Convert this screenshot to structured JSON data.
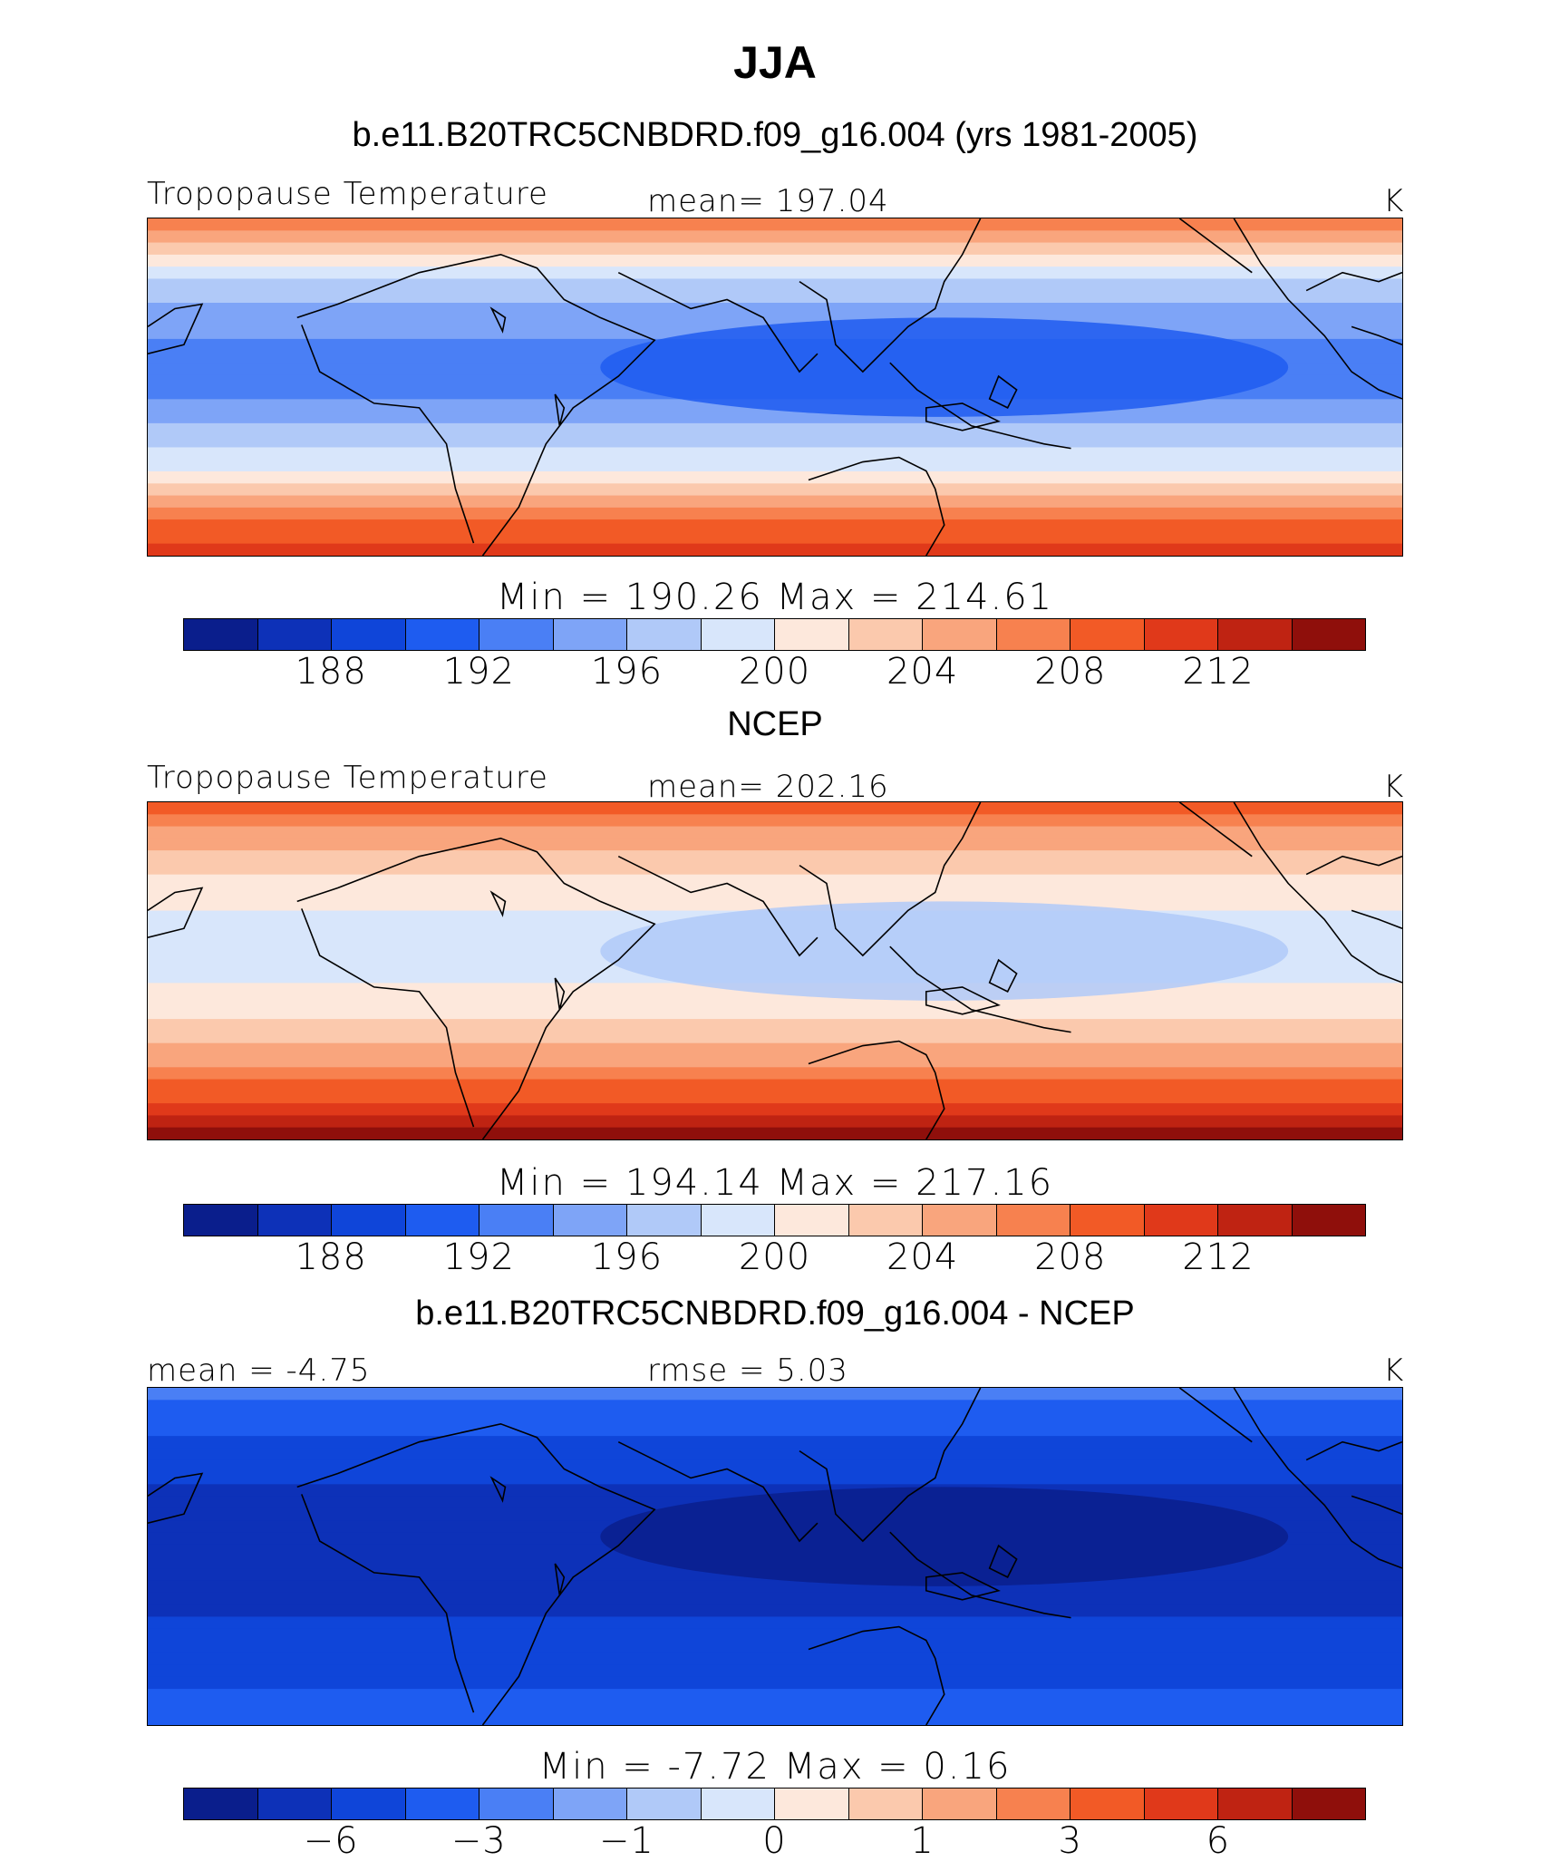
{
  "title": "JJA",
  "colors": [
    "#0a1e8c",
    "#0d31b8",
    "#0f45d9",
    "#1e5cf0",
    "#4a7ff5",
    "#7ea4f7",
    "#b0c9f8",
    "#d8e6fb",
    "#fde8dc",
    "#fbc9ad",
    "#f9a57d",
    "#f7814f",
    "#f25a26",
    "#e0391a",
    "#bf2312",
    "#8f0f0b"
  ],
  "panels": [
    {
      "id": "model",
      "heading": "b.e11.B20TRC5CNBDRD.f09_g16.004 (yrs 1981-2005)",
      "left_label": "Tropopause Temperature",
      "center_label": "mean= 197.04",
      "units": "K",
      "minmax": "Min = 190.26 Max = 214.61",
      "ticks": [
        "188",
        "192",
        "196",
        "200",
        "204",
        "208",
        "212"
      ],
      "field": {
        "tropics_level": 4,
        "pole_level": 14,
        "north_level": 11
      }
    },
    {
      "id": "ncep",
      "heading": "NCEP",
      "left_label": "Tropopause Temperature",
      "center_label": "mean= 202.16",
      "units": "K",
      "minmax": "Min = 194.14 Max = 217.16",
      "ticks": [
        "188",
        "192",
        "196",
        "200",
        "204",
        "208",
        "212"
      ],
      "field": {
        "tropics_level": 7,
        "pole_level": 15,
        "north_level": 12
      }
    },
    {
      "id": "diff",
      "heading": "b.e11.B20TRC5CNBDRD.f09_g16.004 - NCEP",
      "left_label": "mean = -4.75",
      "center_label": "rmse = 5.03",
      "units": "K",
      "minmax": "Min = -7.72 Max = 0.16",
      "ticks": [
        "−6",
        "−3",
        "−1",
        "0",
        "1",
        "3",
        "6"
      ],
      "field": {
        "tropics_level": 1,
        "pole_level": 3,
        "north_level": 4
      }
    }
  ]
}
